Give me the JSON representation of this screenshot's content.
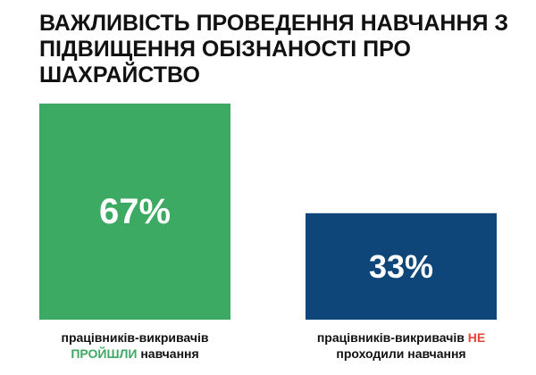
{
  "title": "ВАЖЛИВІСТЬ ПРОВЕДЕННЯ НАВЧАННЯ З ПІДВИЩЕННЯ ОБІЗНАНОСТІ ПРО ШАХРАЙСТВО",
  "colors": {
    "bar_trained": "#3daa63",
    "bar_untrained": "#0e467a",
    "highlight_trained": "#3daa63",
    "highlight_untrained": "#e8443a",
    "value_text": "#ffffff"
  },
  "captions": {
    "trained": {
      "line1": "працівників-викривачів",
      "highlight": "ПРОЙШЛИ",
      "rest": "навчання"
    },
    "untrained": {
      "line1": "працівників-викривачів",
      "highlight": "НЕ",
      "rest": "проходили навчання"
    }
  },
  "chart_data": {
    "type": "bar",
    "title": "ВАЖЛИВІСТЬ ПРОВЕДЕННЯ НАВЧАННЯ З ПІДВИЩЕННЯ ОБІЗНАНОСТІ ПРО ШАХРАЙСТВО",
    "xlabel": "",
    "ylabel": "",
    "unit": "%",
    "ylim": [
      0,
      67
    ],
    "grid": false,
    "categories": [
      "працівників-викривачів ПРОЙШЛИ навчання",
      "працівників-викривачів НЕ проходили навчання"
    ],
    "values": [
      67,
      33
    ],
    "value_labels": [
      "67%",
      "33%"
    ],
    "bar_colors": [
      "#3daa63",
      "#0e467a"
    ]
  }
}
